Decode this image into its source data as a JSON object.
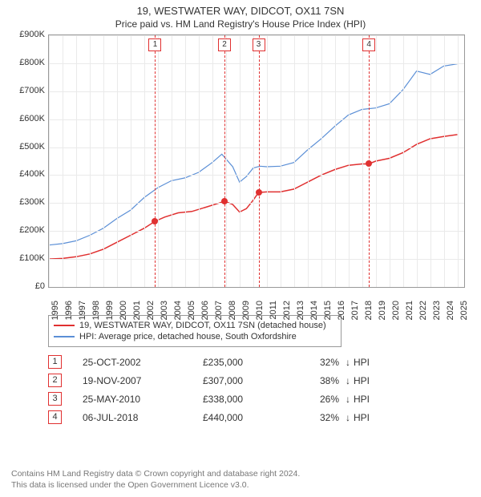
{
  "title": "19, WESTWATER WAY, DIDCOT, OX11 7SN",
  "subtitle": "Price paid vs. HM Land Registry's House Price Index (HPI)",
  "chart": {
    "type": "line",
    "background_color": "#ffffff",
    "grid_color": "#eaeaea",
    "border_color": "#999999",
    "x_years": [
      1995,
      1996,
      1997,
      1998,
      1999,
      2000,
      2001,
      2002,
      2003,
      2004,
      2005,
      2006,
      2007,
      2008,
      2009,
      2010,
      2011,
      2012,
      2013,
      2014,
      2015,
      2016,
      2017,
      2018,
      2019,
      2020,
      2021,
      2022,
      2023,
      2024,
      2025
    ],
    "xlim": [
      1995,
      2025.5
    ],
    "ylim": [
      0,
      900000
    ],
    "ytick_step": 100000,
    "y_labels": [
      "£0",
      "£100K",
      "£200K",
      "£300K",
      "£400K",
      "£500K",
      "£600K",
      "£700K",
      "£800K",
      "£900K"
    ],
    "x_tick_fontsize": 11,
    "y_tick_fontsize": 11,
    "series": [
      {
        "id": "subject",
        "color": "#e03030",
        "line_width": 1.5,
        "points": [
          [
            1995.0,
            100000
          ],
          [
            1996.0,
            102000
          ],
          [
            1997.0,
            108000
          ],
          [
            1998.0,
            118000
          ],
          [
            1999.0,
            135000
          ],
          [
            2000.0,
            160000
          ],
          [
            2001.0,
            185000
          ],
          [
            2002.0,
            210000
          ],
          [
            2002.8,
            235000
          ],
          [
            2003.5,
            250000
          ],
          [
            2004.5,
            265000
          ],
          [
            2005.5,
            270000
          ],
          [
            2006.5,
            285000
          ],
          [
            2007.5,
            300000
          ],
          [
            2007.9,
            307000
          ],
          [
            2008.5,
            295000
          ],
          [
            2009.0,
            268000
          ],
          [
            2009.5,
            280000
          ],
          [
            2010.0,
            310000
          ],
          [
            2010.4,
            338000
          ],
          [
            2011.0,
            340000
          ],
          [
            2012.0,
            340000
          ],
          [
            2013.0,
            350000
          ],
          [
            2014.0,
            375000
          ],
          [
            2015.0,
            400000
          ],
          [
            2016.0,
            420000
          ],
          [
            2017.0,
            435000
          ],
          [
            2018.0,
            440000
          ],
          [
            2018.5,
            440000
          ],
          [
            2019.0,
            450000
          ],
          [
            2020.0,
            460000
          ],
          [
            2021.0,
            480000
          ],
          [
            2022.0,
            510000
          ],
          [
            2023.0,
            530000
          ],
          [
            2024.0,
            538000
          ],
          [
            2025.0,
            545000
          ]
        ]
      },
      {
        "id": "hpi",
        "color": "#5b8fd6",
        "line_width": 1.2,
        "points": [
          [
            1995.0,
            150000
          ],
          [
            1996.0,
            155000
          ],
          [
            1997.0,
            165000
          ],
          [
            1998.0,
            185000
          ],
          [
            1999.0,
            210000
          ],
          [
            2000.0,
            245000
          ],
          [
            2001.0,
            275000
          ],
          [
            2002.0,
            320000
          ],
          [
            2003.0,
            355000
          ],
          [
            2004.0,
            380000
          ],
          [
            2005.0,
            390000
          ],
          [
            2006.0,
            410000
          ],
          [
            2007.0,
            445000
          ],
          [
            2007.7,
            475000
          ],
          [
            2008.5,
            430000
          ],
          [
            2009.0,
            375000
          ],
          [
            2009.5,
            395000
          ],
          [
            2010.0,
            425000
          ],
          [
            2010.5,
            432000
          ],
          [
            2011.0,
            430000
          ],
          [
            2012.0,
            432000
          ],
          [
            2013.0,
            445000
          ],
          [
            2014.0,
            490000
          ],
          [
            2015.0,
            530000
          ],
          [
            2016.0,
            575000
          ],
          [
            2017.0,
            615000
          ],
          [
            2018.0,
            635000
          ],
          [
            2019.0,
            640000
          ],
          [
            2020.0,
            655000
          ],
          [
            2021.0,
            705000
          ],
          [
            2022.0,
            772000
          ],
          [
            2023.0,
            760000
          ],
          [
            2024.0,
            790000
          ],
          [
            2025.0,
            798000
          ]
        ]
      }
    ],
    "event_markers": [
      {
        "n": "1",
        "year": 2002.8,
        "value": 235000
      },
      {
        "n": "2",
        "year": 2007.9,
        "value": 307000
      },
      {
        "n": "3",
        "year": 2010.4,
        "value": 338000
      },
      {
        "n": "4",
        "year": 2018.5,
        "value": 440000
      }
    ],
    "event_line_color": "#e03030",
    "marker_color": "#e03030"
  },
  "legend": {
    "items": [
      {
        "color": "#e03030",
        "label": "19, WESTWATER WAY, DIDCOT, OX11 7SN (detached house)"
      },
      {
        "color": "#5b8fd6",
        "label": "HPI: Average price, detached house, South Oxfordshire"
      }
    ]
  },
  "events": [
    {
      "n": "1",
      "date": "25-OCT-2002",
      "price": "£235,000",
      "pct": "32%",
      "arrow": "↓",
      "ref": "HPI"
    },
    {
      "n": "2",
      "date": "19-NOV-2007",
      "price": "£307,000",
      "pct": "38%",
      "arrow": "↓",
      "ref": "HPI"
    },
    {
      "n": "3",
      "date": "25-MAY-2010",
      "price": "£338,000",
      "pct": "26%",
      "arrow": "↓",
      "ref": "HPI"
    },
    {
      "n": "4",
      "date": "06-JUL-2018",
      "price": "£440,000",
      "pct": "32%",
      "arrow": "↓",
      "ref": "HPI"
    }
  ],
  "footer": {
    "line1": "Contains HM Land Registry data © Crown copyright and database right 2024.",
    "line2": "This data is licensed under the Open Government Licence v3.0."
  }
}
